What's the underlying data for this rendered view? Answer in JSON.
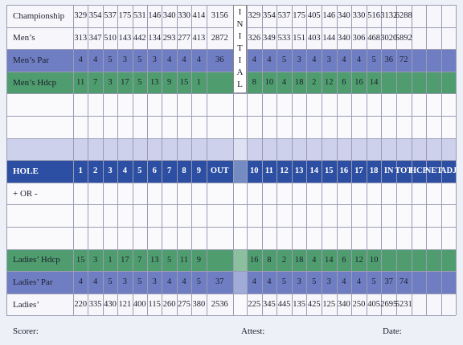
{
  "scorecard": {
    "initial_label": "INITIAL",
    "rows": [
      {
        "label": "Championship",
        "values": [
          329,
          354,
          537,
          175,
          531,
          146,
          340,
          330,
          414,
          3156,
          329,
          354,
          537,
          175,
          405,
          146,
          340,
          330,
          516,
          3132,
          6288
        ]
      },
      {
        "label": "Men’s",
        "values": [
          313,
          347,
          510,
          143,
          442,
          134,
          293,
          277,
          413,
          2872,
          326,
          349,
          533,
          151,
          403,
          144,
          340,
          306,
          468,
          3020,
          5892
        ]
      },
      {
        "label": "Men’s Par",
        "values": [
          4,
          4,
          5,
          3,
          5,
          3,
          4,
          4,
          4,
          36,
          4,
          4,
          5,
          3,
          4,
          3,
          4,
          4,
          5,
          36,
          72
        ]
      },
      {
        "label": "Men’s Hdcp",
        "values": [
          11,
          7,
          3,
          17,
          5,
          13,
          9,
          15,
          1,
          null,
          8,
          10,
          4,
          18,
          2,
          12,
          6,
          16,
          14
        ]
      },
      {
        "label": "HOLE",
        "values": [
          "1",
          "2",
          "3",
          "4",
          "5",
          "6",
          "7",
          "8",
          "9",
          "OUT",
          "10",
          "11",
          "12",
          "13",
          "14",
          "15",
          "16",
          "17",
          "18",
          "IN",
          "TOT",
          "HCP",
          "NET",
          "ADJ"
        ]
      },
      {
        "label": "+ OR -"
      },
      {
        "label": "Ladies’ Hdcp",
        "values": [
          15,
          3,
          1,
          17,
          7,
          13,
          5,
          11,
          9,
          null,
          16,
          8,
          2,
          18,
          4,
          14,
          6,
          12,
          10
        ]
      },
      {
        "label": "Ladies’ Par",
        "values": [
          4,
          4,
          5,
          3,
          5,
          3,
          4,
          4,
          5,
          37,
          4,
          4,
          5,
          3,
          5,
          3,
          4,
          4,
          5,
          37,
          74
        ]
      },
      {
        "label": "Ladies’",
        "values": [
          220,
          335,
          430,
          121,
          400,
          115,
          260,
          275,
          380,
          2536,
          225,
          345,
          445,
          135,
          425,
          125,
          340,
          250,
          405,
          2695,
          5231
        ]
      }
    ],
    "footer": [
      "Scorer:",
      "Attest:",
      "Date:"
    ]
  }
}
